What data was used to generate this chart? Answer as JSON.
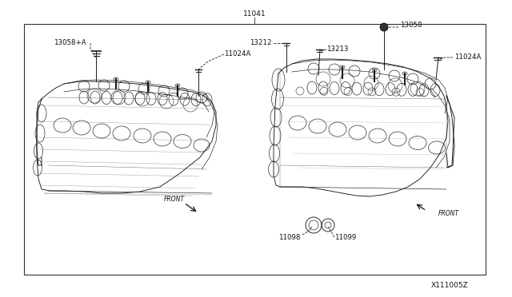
{
  "bg_color": "#ffffff",
  "border_color": "#333333",
  "text_color": "#111111",
  "line_color": "#222222",
  "fig_width": 6.4,
  "fig_height": 3.72,
  "dpi": 100,
  "top_label": "11041",
  "bottom_label": "X111005Z",
  "border": [
    0.048,
    0.075,
    0.948,
    0.918
  ]
}
